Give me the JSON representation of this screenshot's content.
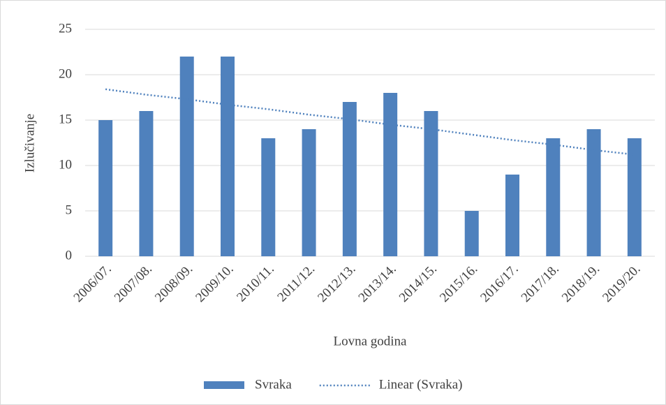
{
  "chart_data": {
    "type": "bar",
    "x_label": "Lovna godina",
    "y_label": "Izlučivanje",
    "categories": [
      "2006/07.",
      "2007/08.",
      "2008/09.",
      "2009/10.",
      "2010/11.",
      "2011/12.",
      "2012/13.",
      "2013/14.",
      "2014/15.",
      "2015/16.",
      "2016/17.",
      "2017/18.",
      "2018/19.",
      "2019/20."
    ],
    "series": [
      {
        "name": "Svraka",
        "color": "#4f81bd",
        "type": "bar",
        "values": [
          15,
          16,
          22,
          22,
          13,
          14,
          17,
          18,
          16,
          5,
          9,
          13,
          14,
          13
        ]
      },
      {
        "name": "Linear (Svraka)",
        "color": "#4f81bd",
        "type": "line",
        "dash": "dotted",
        "values": [
          18.4,
          17.8,
          17.3,
          16.7,
          16.2,
          15.6,
          15.1,
          14.5,
          14.0,
          13.4,
          12.8,
          12.3,
          11.7,
          11.2
        ]
      }
    ],
    "ylim": [
      0,
      25
    ],
    "yticks": [
      0,
      5,
      10,
      15,
      20,
      25
    ],
    "grid": true,
    "legend": "bottom"
  }
}
